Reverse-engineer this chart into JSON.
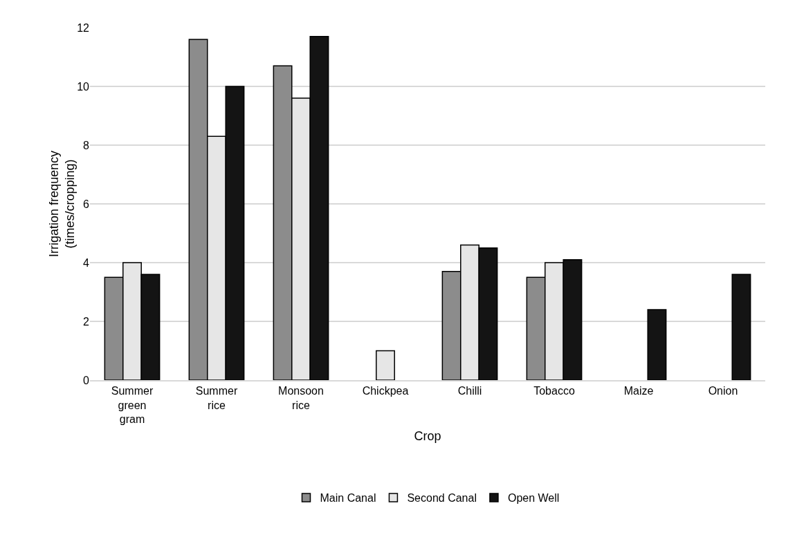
{
  "chart_data": {
    "type": "bar",
    "xlabel": "Crop",
    "ylabel": "Irrigation frequency (times/cropping)",
    "categories": [
      "Summer green gram",
      "Summer rice",
      "Monsoon rice",
      "Chickpea",
      "Chilli",
      "Tobacco",
      "Maize",
      "Onion"
    ],
    "series": [
      {
        "name": "Main Canal",
        "color": "#8c8c8c",
        "values": [
          3.5,
          11.6,
          10.7,
          0,
          3.7,
          3.5,
          0,
          0
        ]
      },
      {
        "name": "Second Canal",
        "color": "#e6e6e6",
        "values": [
          4.0,
          8.3,
          9.6,
          1.0,
          4.6,
          4.0,
          0,
          0
        ]
      },
      {
        "name": "Open Well",
        "color": "#141414",
        "values": [
          3.6,
          10.0,
          11.7,
          0,
          4.5,
          4.1,
          2.4,
          3.6
        ]
      }
    ],
    "ylim": [
      0,
      12
    ],
    "yticks": [
      0,
      2,
      4,
      6,
      8,
      10,
      12
    ],
    "grid": "y",
    "legend": "bottom"
  }
}
